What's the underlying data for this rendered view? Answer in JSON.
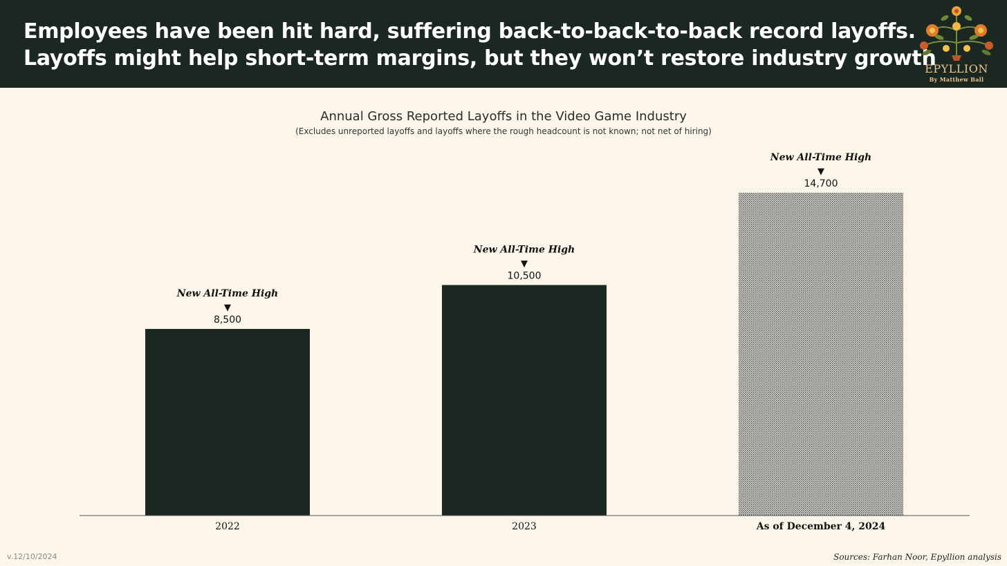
{
  "header": {
    "headline_line1": "Employees have been hit hard, suffering back-to-back-to-back record layoffs.",
    "headline_line2": "Layoffs might help short-term margins, but they won’t restore industry growth",
    "background_color": "#1b2822"
  },
  "logo": {
    "name": "EPYLLION",
    "byline": "By Matthew Ball"
  },
  "chart_data": {
    "type": "bar",
    "title": "Annual Gross Reported Layoffs in the Video Game Industry",
    "subtitle": "(Excludes unreported layoffs and layoffs where the rough headcount is not known; not net of hiring)",
    "categories": [
      "2022",
      "2023",
      "As of December 4, 2024"
    ],
    "values": [
      8500,
      10500,
      14700
    ],
    "value_labels": [
      "8,500",
      "10,500",
      "14,700"
    ],
    "annotations": [
      "New All-Time High",
      "New All-Time High",
      "New All-Time High"
    ],
    "bar_styles": [
      "solid",
      "solid",
      "hatched"
    ],
    "bar_color": "#1b2822",
    "ylim": [
      0,
      14700
    ],
    "grid": false,
    "xlabel": "",
    "ylabel": ""
  },
  "footer": {
    "version": "v.12/10/2024",
    "sources": "Sources: Farhan Noor, Epyllion analysis"
  }
}
